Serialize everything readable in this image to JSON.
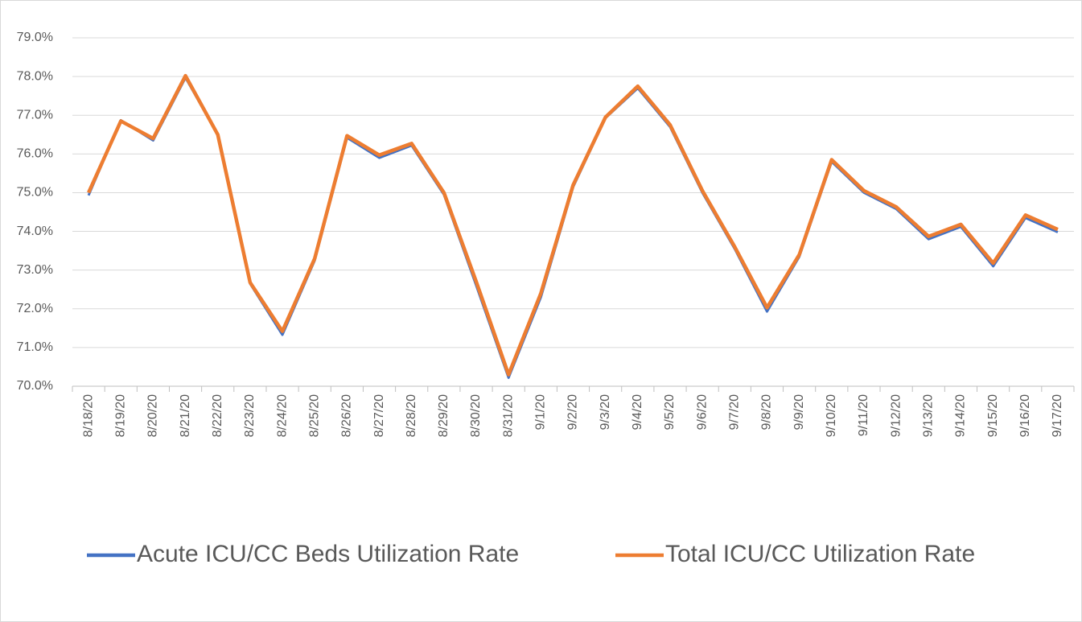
{
  "chart_data": {
    "type": "line",
    "categories": [
      "8/18/20",
      "8/19/20",
      "8/20/20",
      "8/21/20",
      "8/22/20",
      "8/23/20",
      "8/24/20",
      "8/25/20",
      "8/26/20",
      "8/27/20",
      "8/28/20",
      "8/29/20",
      "8/30/20",
      "8/31/20",
      "9/1/20",
      "9/2/20",
      "9/3/20",
      "9/4/20",
      "9/5/20",
      "9/6/20",
      "9/7/20",
      "9/8/20",
      "9/9/20",
      "9/10/20",
      "9/11/20",
      "9/12/20",
      "9/13/20",
      "9/14/20",
      "9/15/20",
      "9/16/20",
      "9/17/20"
    ],
    "series": [
      {
        "name": "Acute ICU/CC Beds Utilization Rate",
        "color": "#4472c4",
        "values": [
          74.93,
          76.87,
          76.35,
          77.97,
          76.5,
          72.65,
          71.33,
          73.25,
          76.42,
          75.9,
          76.22,
          74.95,
          72.6,
          70.22,
          72.3,
          75.15,
          76.93,
          77.7,
          76.7,
          75.0,
          73.55,
          71.93,
          73.35,
          75.8,
          75.0,
          74.58,
          73.8,
          74.12,
          73.1,
          74.35,
          73.98
        ]
      },
      {
        "name": "Total ICU/CC Utilization Rate",
        "color": "#ed7d31",
        "values": [
          75.0,
          76.85,
          76.4,
          78.02,
          76.5,
          72.68,
          71.42,
          73.3,
          76.47,
          75.97,
          76.27,
          75.0,
          72.7,
          70.3,
          72.4,
          75.2,
          76.95,
          77.75,
          76.75,
          75.05,
          73.6,
          72.03,
          73.4,
          75.85,
          75.05,
          74.63,
          73.87,
          74.18,
          73.18,
          74.42,
          74.05
        ]
      }
    ],
    "ylim": [
      70,
      79
    ],
    "yticks": [
      {
        "value": 70,
        "label": "70.0%"
      },
      {
        "value": 71,
        "label": "71.0%"
      },
      {
        "value": 72,
        "label": "72.0%"
      },
      {
        "value": 73,
        "label": "73.0%"
      },
      {
        "value": 74,
        "label": "74.0%"
      },
      {
        "value": 75,
        "label": "75.0%"
      },
      {
        "value": 76,
        "label": "76.0%"
      },
      {
        "value": 77,
        "label": "77.0%"
      },
      {
        "value": 78,
        "label": "78.0%"
      },
      {
        "value": 79,
        "label": "79.0%"
      }
    ],
    "grid": true,
    "legend": "bottom"
  }
}
